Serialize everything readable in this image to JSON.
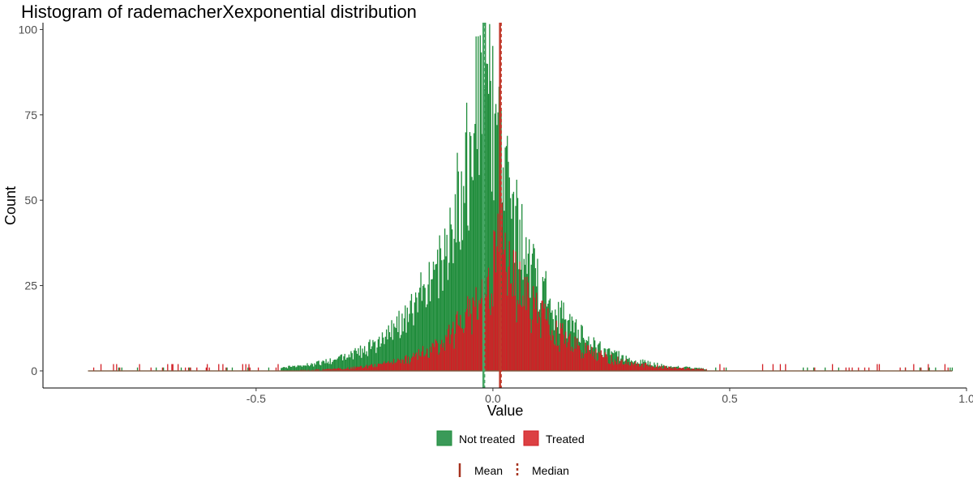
{
  "chart_data": {
    "type": "bar",
    "title": "Histogram of rademacherXexponential distribution",
    "xlabel": "Value",
    "ylabel": "Count",
    "xlim": [
      -0.95,
      1.0
    ],
    "ylim": [
      -5,
      102
    ],
    "x_ticks": [
      -0.5,
      0,
      0.5,
      1.0
    ],
    "x_tick_labels": [
      "-0.5",
      "0.0",
      "0.5",
      "1.0"
    ],
    "y_ticks": [
      0,
      25,
      50,
      75,
      100
    ],
    "y_tick_labels": [
      "0",
      "25",
      "50",
      "75",
      "100"
    ],
    "grid": false,
    "data_range": [
      -0.855,
      0.97
    ],
    "series": [
      {
        "name": "Not treated",
        "color": "#1e8c3a",
        "peak_x": -0.02,
        "peak_count": 103,
        "mean": -0.02,
        "median": -0.02
      },
      {
        "name": "Treated",
        "color": "#d11f25",
        "peak_x": 0.015,
        "peak_count": 43,
        "mean": 0.015,
        "median": 0.015
      }
    ],
    "legend": {
      "position": "bottom",
      "fill_items": [
        "Not treated",
        "Treated"
      ],
      "line_items": [
        {
          "label": "Mean",
          "style": "solid"
        },
        {
          "label": "Median",
          "style": "dashed"
        }
      ]
    }
  }
}
